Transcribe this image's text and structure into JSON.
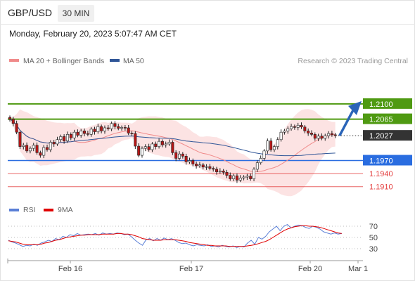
{
  "header": {
    "pair": "GBP/USD",
    "timeframe": "30 MIN",
    "datetime": "Monday, February 20, 2023 5:07:47 AM CET"
  },
  "legend": {
    "ma20": {
      "label": "MA 20 + Bollinger Bands",
      "color": "#f08a8a"
    },
    "ma50": {
      "label": "MA 50",
      "color": "#2f5597"
    },
    "watermark": "Research © 2023 Trading Central",
    "rsi": {
      "label": "RSI",
      "color": "#5a7fd6"
    },
    "rsi_ma": {
      "label": "9MA",
      "color": "#e00000"
    }
  },
  "colors": {
    "resistance": "#4f9a12",
    "support_key": "#2a6de0",
    "support": "#e44040",
    "price_tag": "#333333",
    "bollinger": "#fbd9d9",
    "candle_up": "#ffffff",
    "candle_down": "#b81616"
  },
  "chart_data": [
    {
      "type": "candlestick",
      "title": "GBP/USD",
      "timeframe": "30 MIN",
      "x_ticks": [
        "Feb 16",
        "Feb 17",
        "Feb 20",
        "Mar 1"
      ],
      "ylim": [
        1.1895,
        1.2145
      ],
      "last_price": 1.2027,
      "levels": [
        {
          "value": 1.21,
          "label": "1.2100",
          "role": "resistance"
        },
        {
          "value": 1.2065,
          "label": "1.2065",
          "role": "resistance"
        },
        {
          "value": 1.2027,
          "label": "1.2027",
          "role": "last"
        },
        {
          "value": 1.197,
          "label": "1.1970",
          "role": "support_key"
        },
        {
          "value": 1.194,
          "label": "1.1940",
          "role": "support"
        },
        {
          "value": 1.191,
          "label": "1.1910",
          "role": "support"
        }
      ],
      "forecast_arrow": {
        "from": 1.2027,
        "to": 1.21
      },
      "close": [
        1.2065,
        1.2055,
        1.2035,
        1.2002,
        1.2005,
        1.1992,
        1.1998,
        1.2005,
        1.1988,
        1.1982,
        1.2,
        1.1995,
        1.2012,
        1.2008,
        1.2018,
        1.2025,
        1.2015,
        1.203,
        1.2022,
        1.2035,
        1.2028,
        1.2038,
        1.2032,
        1.203,
        1.2042,
        1.2036,
        1.2048,
        1.2038,
        1.2045,
        1.2043,
        1.2055,
        1.2048,
        1.2044,
        1.2046,
        1.2045,
        1.2033,
        1.2032,
        1.2003,
        1.1982,
        1.1998,
        1.2002,
        1.1995,
        1.2008,
        1.2002,
        1.2014,
        1.2006,
        1.2008,
        1.2012,
        1.1988,
        1.1975,
        1.1985,
        1.198,
        1.1967,
        1.197,
        1.1962,
        1.1958,
        1.196,
        1.1955,
        1.1956,
        1.1952,
        1.195,
        1.1944,
        1.1946,
        1.1943,
        1.1936,
        1.1928,
        1.1935,
        1.1925,
        1.193,
        1.1932,
        1.1934,
        1.1928,
        1.195,
        1.1965,
        1.1975,
        1.1992,
        1.2015,
        1.1995,
        1.2002,
        1.2018,
        1.2035,
        1.2038,
        1.2043,
        1.2048,
        1.2046,
        1.2051,
        1.2047,
        1.2038,
        1.2033,
        1.203,
        1.2021,
        1.2026,
        1.2021,
        1.2027,
        1.2032,
        1.2029,
        1.2027
      ]
    },
    {
      "type": "line",
      "title": "RSI",
      "ylim": [
        15,
        85
      ],
      "y_ticks": [
        70,
        50,
        30
      ],
      "series": [
        {
          "name": "RSI",
          "values": [
            45,
            42,
            40,
            37,
            34,
            36,
            35,
            38,
            36,
            40,
            42,
            45,
            43,
            48,
            46,
            52,
            50,
            55,
            53,
            57,
            54,
            55,
            56,
            55,
            57,
            54,
            58,
            56,
            57,
            56,
            58,
            57,
            55,
            56,
            51,
            45,
            40,
            36,
            46,
            48,
            44,
            48,
            45,
            49,
            46,
            48,
            45,
            41,
            39,
            40,
            37,
            35,
            37,
            36,
            35,
            37,
            34,
            35,
            33,
            36,
            34,
            33,
            35,
            32,
            34,
            33,
            40,
            45,
            38,
            50,
            47,
            52,
            60,
            65,
            70,
            62,
            70,
            73,
            67,
            70,
            72,
            71,
            68,
            66,
            70,
            68,
            65,
            60,
            58,
            56,
            58,
            56,
            57
          ]
        },
        {
          "name": "9MA",
          "values": [
            44,
            43,
            42,
            40,
            38,
            37,
            37,
            37,
            37,
            38,
            40,
            41,
            43,
            45,
            46,
            48,
            50,
            51,
            52,
            53,
            54,
            54,
            55,
            55,
            55,
            55,
            56,
            56,
            56,
            56,
            57,
            57,
            56,
            56,
            55,
            53,
            51,
            48,
            47,
            46,
            45,
            45,
            45,
            46,
            46,
            46,
            46,
            45,
            44,
            43,
            41,
            40,
            39,
            38,
            37,
            36,
            36,
            35,
            35,
            35,
            35,
            34,
            34,
            34,
            34,
            34,
            35,
            36,
            37,
            39,
            41,
            43,
            46,
            50,
            54,
            58,
            62,
            65,
            67,
            69,
            70,
            71,
            71,
            70,
            70,
            69,
            68,
            66,
            64,
            62,
            60,
            58,
            57
          ]
        }
      ]
    }
  ]
}
